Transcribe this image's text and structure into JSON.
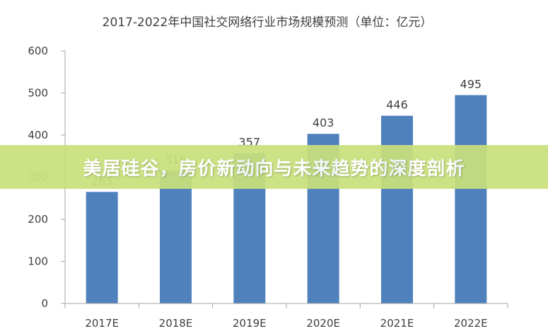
{
  "chart_data": {
    "type": "bar",
    "title": "2017-2022年中国社交网络行业市场规模预测（单位：亿元）",
    "categories": [
      "2017E",
      "2018E",
      "2019E",
      "2020E",
      "2021E",
      "2022E"
    ],
    "values": [
      265,
      316,
      357,
      403,
      446,
      495
    ],
    "data_labels": [
      "265",
      "316",
      "357",
      "403",
      "446",
      "495"
    ],
    "y_ticks": [
      "0",
      "100",
      "200",
      "300",
      "400",
      "500",
      "600"
    ],
    "ylim": [
      0,
      600
    ],
    "xlabel": "",
    "ylabel": "",
    "bar_color": "#4f81bd",
    "axis_color": "#a6a6a6"
  },
  "overlay": {
    "text": "美居硅谷，房价新动向与未来趋势的深度剖析",
    "band_color": "#c9e07c"
  }
}
